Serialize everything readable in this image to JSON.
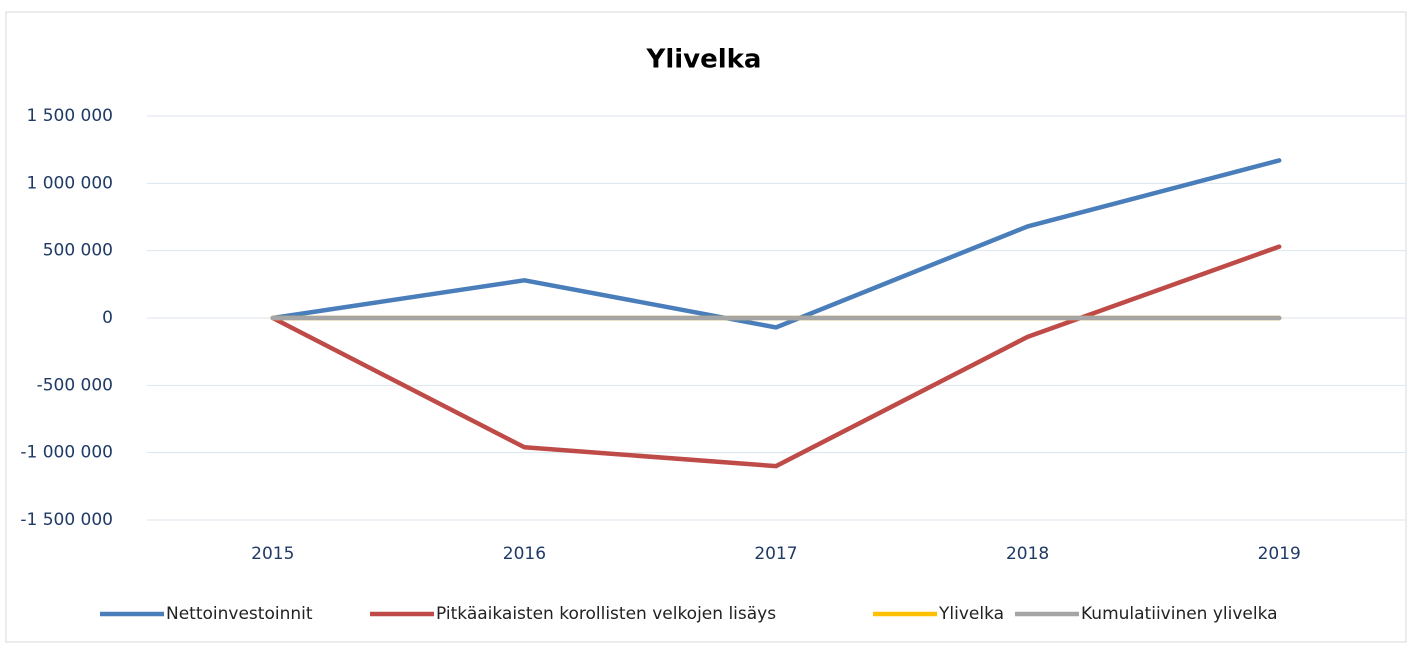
{
  "chart_data": {
    "type": "line",
    "title": "Ylivelka",
    "categories": [
      "2015",
      "2016",
      "2017",
      "2018",
      "2019"
    ],
    "series": [
      {
        "name": "Nettoinvestoinnit",
        "color": "#4a7ebb",
        "values": [
          0,
          280000,
          -70000,
          680000,
          1170000
        ]
      },
      {
        "name": "Pitkäaikaisten korollisten velkojen lisäys",
        "color": "#be4b48",
        "values": [
          0,
          -960000,
          -1100000,
          -140000,
          530000
        ]
      },
      {
        "name": "Ylivelka",
        "color": "#ffc000",
        "values": [
          0,
          0,
          0,
          0,
          0
        ]
      },
      {
        "name": "Kumulatiivinen ylivelka",
        "color": "#a5a5a5",
        "values": [
          0,
          0,
          0,
          0,
          0
        ]
      }
    ],
    "ylim": [
      -1500000,
      1500000
    ],
    "yticks": [
      {
        "value": -1500000,
        "label": "-1 500 000"
      },
      {
        "value": -1000000,
        "label": "-1 000 000"
      },
      {
        "value": -500000,
        "label": "-500 000"
      },
      0,
      {
        "value": 500000,
        "label": "500 000"
      },
      {
        "value": 1000000,
        "label": "1 000 000"
      },
      {
        "value": 1500000,
        "label": "1 500 000"
      }
    ],
    "grid": true,
    "legend": "bottom"
  }
}
